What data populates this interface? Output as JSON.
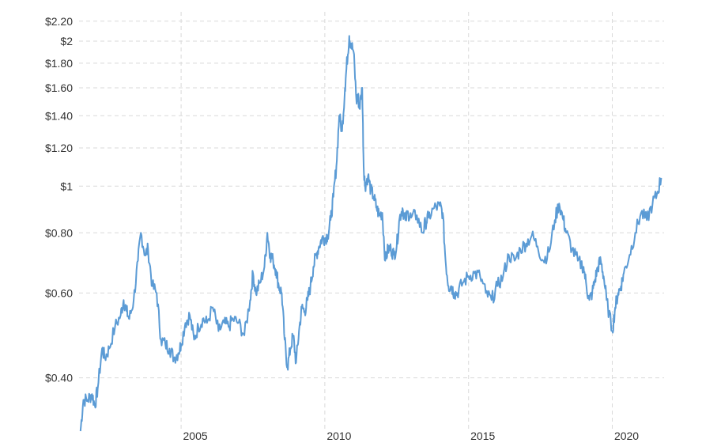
{
  "chart_data": {
    "type": "line",
    "title": "",
    "xlabel": "",
    "ylabel": "",
    "y_scale": "log",
    "ylim": [
      0.31,
      2.3
    ],
    "xlim": [
      2001.45,
      2021.8
    ],
    "grid": true,
    "legend": "none",
    "colors": {
      "line": "#5b9bd5",
      "grid": "#d9d9d9",
      "text": "#333333"
    },
    "y_ticks": [
      {
        "value": 0.4,
        "label": "$0.40"
      },
      {
        "value": 0.6,
        "label": "$0.60"
      },
      {
        "value": 0.8,
        "label": "$0.80"
      },
      {
        "value": 1.0,
        "label": "$1"
      },
      {
        "value": 1.2,
        "label": "$1.20"
      },
      {
        "value": 1.4,
        "label": "$1.40"
      },
      {
        "value": 1.6,
        "label": "$1.60"
      },
      {
        "value": 1.8,
        "label": "$1.80"
      },
      {
        "value": 2.0,
        "label": "$2"
      },
      {
        "value": 2.2,
        "label": "$2.20"
      }
    ],
    "x_ticks": [
      {
        "value": 2005,
        "label": "2005"
      },
      {
        "value": 2010,
        "label": "2010"
      },
      {
        "value": 2015,
        "label": "2015"
      },
      {
        "value": 2020,
        "label": "2020"
      }
    ],
    "series": [
      {
        "x": [
          2001.5,
          2001.6,
          2001.75,
          2001.9,
          2002.0,
          2002.1,
          2002.25,
          2002.35,
          2002.5,
          2002.7,
          2002.9,
          2003.0,
          2003.1,
          2003.2,
          2003.35,
          2003.5,
          2003.6,
          2003.75,
          2003.85,
          2004.0,
          2004.15,
          2004.3,
          2004.45,
          2004.6,
          2004.75,
          2004.9,
          2005.0,
          2005.15,
          2005.3,
          2005.45,
          2005.6,
          2005.75,
          2005.9,
          2006.1,
          2006.3,
          2006.5,
          2006.65,
          2006.8,
          2007.0,
          2007.2,
          2007.4,
          2007.5,
          2007.6,
          2007.75,
          2007.9,
          2008.0,
          2008.1,
          2008.2,
          2008.3,
          2008.4,
          2008.5,
          2008.6,
          2008.7,
          2008.8,
          2008.9,
          2009.0,
          2009.1,
          2009.2,
          2009.3,
          2009.4,
          2009.5,
          2009.6,
          2009.7,
          2009.8,
          2009.9,
          2010.0,
          2010.1,
          2010.2,
          2010.3,
          2010.4,
          2010.5,
          2010.6,
          2010.7,
          2010.75,
          2010.85,
          2010.9,
          2011.0,
          2011.1,
          2011.15,
          2011.2,
          2011.3,
          2011.35,
          2011.4,
          2011.5,
          2011.6,
          2011.7,
          2011.8,
          2011.9,
          2012.0,
          2012.1,
          2012.2,
          2012.3,
          2012.4,
          2012.5,
          2012.6,
          2012.7,
          2012.8,
          2012.9,
          2013.0,
          2013.2,
          2013.4,
          2013.5,
          2013.6,
          2013.8,
          2014.0,
          2014.1,
          2014.2,
          2014.3,
          2014.4,
          2014.5,
          2014.6,
          2014.8,
          2015.0,
          2015.2,
          2015.4,
          2015.6,
          2015.8,
          2016.0,
          2016.2,
          2016.4,
          2016.6,
          2016.8,
          2017.0,
          2017.2,
          2017.4,
          2017.6,
          2017.8,
          2018.0,
          2018.15,
          2018.3,
          2018.4,
          2018.6,
          2018.8,
          2019.0,
          2019.1,
          2019.2,
          2019.3,
          2019.4,
          2019.5,
          2019.6,
          2019.7,
          2019.8,
          2020.0,
          2020.1,
          2020.2,
          2020.3,
          2020.4,
          2020.6,
          2020.8,
          2021.0,
          2021.2,
          2021.4,
          2021.55,
          2021.7
        ],
        "values": [
          0.31,
          0.36,
          0.36,
          0.37,
          0.35,
          0.38,
          0.46,
          0.44,
          0.46,
          0.51,
          0.54,
          0.58,
          0.55,
          0.53,
          0.58,
          0.7,
          0.8,
          0.72,
          0.74,
          0.62,
          0.6,
          0.48,
          0.47,
          0.46,
          0.44,
          0.45,
          0.47,
          0.52,
          0.54,
          0.48,
          0.51,
          0.53,
          0.52,
          0.56,
          0.5,
          0.52,
          0.51,
          0.53,
          0.52,
          0.49,
          0.58,
          0.66,
          0.6,
          0.63,
          0.68,
          0.8,
          0.72,
          0.7,
          0.67,
          0.62,
          0.6,
          0.48,
          0.42,
          0.46,
          0.49,
          0.43,
          0.5,
          0.56,
          0.55,
          0.58,
          0.62,
          0.68,
          0.72,
          0.75,
          0.78,
          0.78,
          0.79,
          0.85,
          0.95,
          1.1,
          1.4,
          1.3,
          1.6,
          1.75,
          2.05,
          1.98,
          1.9,
          1.5,
          1.55,
          1.45,
          1.6,
          1.1,
          1.0,
          1.05,
          0.98,
          0.95,
          0.9,
          0.87,
          0.88,
          0.7,
          0.74,
          0.74,
          0.72,
          0.75,
          0.86,
          0.9,
          0.85,
          0.88,
          0.86,
          0.87,
          0.8,
          0.84,
          0.86,
          0.9,
          0.91,
          0.88,
          0.7,
          0.62,
          0.62,
          0.6,
          0.6,
          0.63,
          0.65,
          0.66,
          0.65,
          0.6,
          0.58,
          0.62,
          0.65,
          0.72,
          0.7,
          0.74,
          0.76,
          0.79,
          0.75,
          0.7,
          0.73,
          0.85,
          0.92,
          0.85,
          0.8,
          0.74,
          0.7,
          0.68,
          0.62,
          0.58,
          0.6,
          0.64,
          0.68,
          0.7,
          0.65,
          0.58,
          0.5,
          0.56,
          0.6,
          0.62,
          0.66,
          0.72,
          0.8,
          0.88,
          0.85,
          0.92,
          0.96,
          1.04
        ]
      }
    ]
  }
}
